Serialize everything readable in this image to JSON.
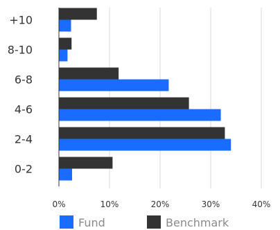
{
  "chart_data": {
    "type": "bar",
    "orientation": "horizontal",
    "categories": [
      "+10",
      "8-10",
      "6-8",
      "4-6",
      "2-4",
      "0-2"
    ],
    "series": [
      {
        "name": "Benchmark",
        "color": "#333333",
        "values": [
          7.5,
          2.5,
          11.8,
          25.7,
          32.8,
          10.6
        ]
      },
      {
        "name": "Fund",
        "color": "#1a6cff",
        "values": [
          2.4,
          1.7,
          21.7,
          32.0,
          34.0,
          2.6
        ]
      }
    ],
    "xlim": [
      0,
      40
    ],
    "xticks": [
      0,
      10,
      20,
      30,
      40
    ],
    "xtick_labels": [
      "0%",
      "10%",
      "20%",
      "30%",
      "40%"
    ],
    "grid": "vertical",
    "legend": {
      "position": "bottom",
      "items": [
        {
          "label": "Fund",
          "color": "#1a6cff"
        },
        {
          "label": "Benchmark",
          "color": "#333333"
        }
      ]
    }
  }
}
